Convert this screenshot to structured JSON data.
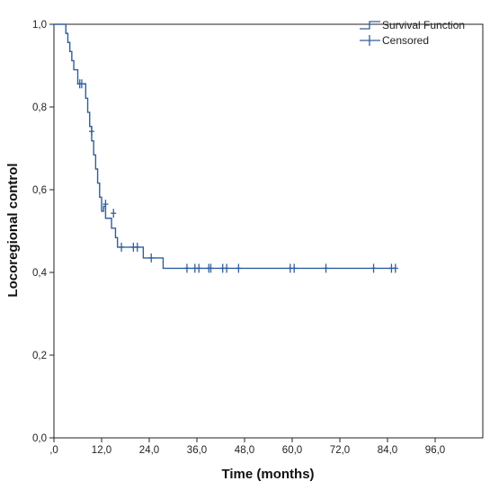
{
  "chart_data": {
    "type": "line",
    "title": "",
    "xlabel": "Time (months)",
    "ylabel": "Locoregional control",
    "xlim": [
      0,
      108
    ],
    "ylim": [
      0,
      1.0
    ],
    "x_ticks": [
      0,
      12,
      24,
      36,
      48,
      60,
      72,
      84,
      96
    ],
    "x_tick_labels": [
      ",0",
      "12,0",
      "24,0",
      "36,0",
      "48,0",
      "60,0",
      "72,0",
      "84,0",
      "96,0"
    ],
    "y_ticks": [
      0,
      0.2,
      0.4,
      0.6,
      0.8,
      1.0
    ],
    "y_tick_labels": [
      "0,0",
      "0,2",
      "0,4",
      "0,6",
      "0,8",
      "1,0"
    ],
    "grid": false,
    "legend_position": "top-right",
    "series": [
      {
        "name": "Survival Function",
        "color": "#2f5f9e",
        "style": "step",
        "x": [
          0,
          3.0,
          3.5,
          4.0,
          4.5,
          5.0,
          6.0,
          8.0,
          8.5,
          9.0,
          9.5,
          10.0,
          10.5,
          11.0,
          11.5,
          12.0,
          12.5,
          13.0,
          14.5,
          15.5,
          16.0,
          17.0,
          22.5,
          27.5,
          86.0
        ],
        "y": [
          1.0,
          0.978,
          0.956,
          0.934,
          0.912,
          0.89,
          0.856,
          0.821,
          0.787,
          0.753,
          0.718,
          0.684,
          0.65,
          0.616,
          0.582,
          0.548,
          0.56,
          0.531,
          0.507,
          0.484,
          0.461,
          0.461,
          0.435,
          0.41,
          0.41
        ]
      },
      {
        "name": "Censored",
        "color": "#2f5f9e",
        "style": "marker",
        "x": [
          6.5,
          7.0,
          9.5,
          13.0,
          15.0,
          17.0,
          20.0,
          21.0,
          24.5,
          33.5,
          35.5,
          36.5,
          39.0,
          39.5,
          42.5,
          43.5,
          46.5,
          59.5,
          60.5,
          68.5,
          80.5,
          85.0,
          86.0
        ],
        "y": [
          0.856,
          0.856,
          0.741,
          0.565,
          0.543,
          0.461,
          0.461,
          0.461,
          0.435,
          0.41,
          0.41,
          0.41,
          0.41,
          0.41,
          0.41,
          0.41,
          0.41,
          0.41,
          0.41,
          0.41,
          0.41,
          0.41,
          0.41
        ]
      }
    ]
  }
}
